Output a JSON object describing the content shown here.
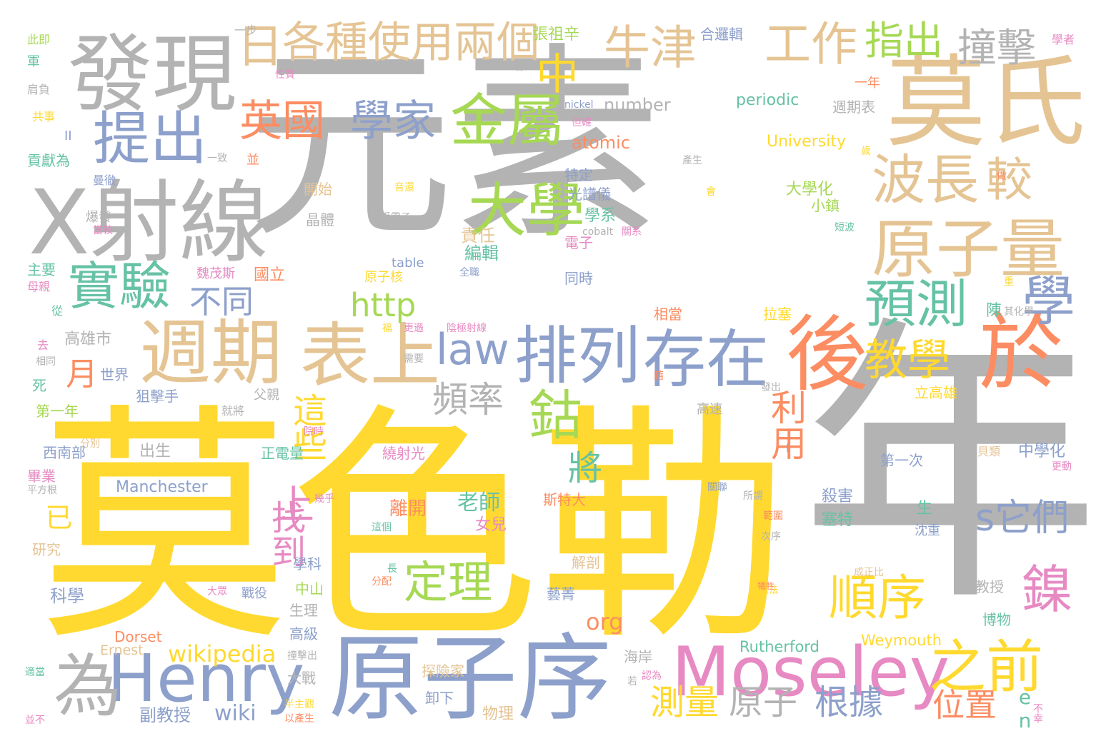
{
  "colors": {
    "gray": "#b3b3b3",
    "yellow": "#ffd92f",
    "tan": "#e5c494",
    "blue": "#8da0cb",
    "orange": "#fc8d62",
    "green": "#a6d854",
    "teal": "#66c2a5",
    "pink": "#e78ac3"
  },
  "words": [
    {
      "text": "元素",
      "color": "gray"
    },
    {
      "text": "莫色勒",
      "color": "yellow"
    },
    {
      "text": "年",
      "color": "gray"
    },
    {
      "text": "莫氏",
      "color": "tan"
    },
    {
      "text": "發現",
      "color": "gray"
    },
    {
      "text": "X射線",
      "color": "gray"
    },
    {
      "text": "原子序",
      "color": "blue"
    },
    {
      "text": "Moseley",
      "color": "pink"
    },
    {
      "text": "後",
      "color": "orange"
    },
    {
      "text": "於",
      "color": "orange"
    },
    {
      "text": "週期",
      "color": "tan"
    },
    {
      "text": "表上",
      "color": "tan"
    },
    {
      "text": "原子量",
      "color": "tan"
    },
    {
      "text": "排列",
      "color": "blue"
    },
    {
      "text": "存在",
      "color": "blue"
    },
    {
      "text": "Henry",
      "color": "blue"
    },
    {
      "text": "之前",
      "color": "yellow"
    },
    {
      "text": "為",
      "color": "gray"
    },
    {
      "text": "金屬",
      "color": "green"
    },
    {
      "text": "提出",
      "color": "blue"
    },
    {
      "text": "大學",
      "color": "green"
    },
    {
      "text": "實驗",
      "color": "teal"
    },
    {
      "text": "波長",
      "color": "tan"
    },
    {
      "text": "較",
      "color": "tan"
    },
    {
      "text": "預測",
      "color": "teal"
    },
    {
      "text": "學",
      "color": "blue"
    },
    {
      "text": "牛津",
      "color": "tan"
    },
    {
      "text": "工作",
      "color": "tan"
    },
    {
      "text": "撞擊",
      "color": "gray"
    },
    {
      "text": "指出",
      "color": "green"
    },
    {
      "text": "日",
      "color": "tan"
    },
    {
      "text": "各種",
      "color": "tan"
    },
    {
      "text": "使用",
      "color": "tan"
    },
    {
      "text": "兩個",
      "color": "tan"
    },
    {
      "text": "中",
      "color": "yellow"
    },
    {
      "text": "英國",
      "color": "orange"
    },
    {
      "text": "學家",
      "color": "blue"
    },
    {
      "text": "law",
      "color": "blue"
    },
    {
      "text": "教學",
      "color": "yellow"
    },
    {
      "text": "鈷",
      "color": "green"
    },
    {
      "text": "順序",
      "color": "yellow"
    },
    {
      "text": "鎳",
      "color": "pink"
    },
    {
      "text": "定理",
      "color": "green"
    },
    {
      "text": "s它們",
      "color": "blue"
    },
    {
      "text": "頻率",
      "color": "gray"
    },
    {
      "text": "http",
      "color": "green"
    },
    {
      "text": "不同",
      "color": "blue"
    },
    {
      "text": "月",
      "color": "orange"
    },
    {
      "text": "上",
      "color": "pink"
    },
    {
      "text": "將",
      "color": "teal"
    },
    {
      "text": "利用",
      "color": "orange"
    },
    {
      "text": "這些",
      "color": "yellow"
    },
    {
      "text": "找到",
      "color": "pink"
    },
    {
      "text": "測量",
      "color": "yellow"
    },
    {
      "text": "原子",
      "color": "gray"
    },
    {
      "text": "根據",
      "color": "blue"
    },
    {
      "text": "位置",
      "color": "orange"
    },
    {
      "text": "en",
      "color": "teal"
    },
    {
      "text": "wikipedia",
      "color": "yellow"
    },
    {
      "text": "wiki",
      "color": "blue"
    },
    {
      "text": "org",
      "color": "orange"
    },
    {
      "text": "已",
      "color": "yellow"
    },
    {
      "text": "老師",
      "color": "teal"
    },
    {
      "text": "離開",
      "color": "orange"
    },
    {
      "text": "女兒",
      "color": "pink"
    },
    {
      "text": "Manchester",
      "color": "blue"
    },
    {
      "text": "Rutherford",
      "color": "teal"
    },
    {
      "text": "Weymouth",
      "color": "yellow"
    },
    {
      "text": "Dorset",
      "color": "orange"
    },
    {
      "text": "Ernest",
      "color": "tan"
    },
    {
      "text": "number",
      "color": "gray"
    },
    {
      "text": "atomic",
      "color": "orange"
    },
    {
      "text": "periodic",
      "color": "teal"
    },
    {
      "text": "University",
      "color": "yellow"
    },
    {
      "text": "table",
      "color": "blue"
    },
    {
      "text": "nickel",
      "color": "blue"
    },
    {
      "text": "cobalt",
      "color": "gray"
    },
    {
      "text": "高雄市",
      "color": "gray"
    },
    {
      "text": "世界",
      "color": "blue"
    },
    {
      "text": "西南部",
      "color": "blue"
    },
    {
      "text": "狙擊手",
      "color": "blue"
    },
    {
      "text": "出生",
      "color": "gray"
    },
    {
      "text": "正電量",
      "color": "teal"
    },
    {
      "text": "繞射光",
      "color": "pink"
    },
    {
      "text": "中學化",
      "color": "blue"
    },
    {
      "text": "第一次",
      "color": "blue"
    },
    {
      "text": "學系",
      "color": "teal"
    },
    {
      "text": "大學化",
      "color": "green"
    },
    {
      "text": "週期表",
      "color": "gray"
    },
    {
      "text": "光譜儀",
      "color": "blue"
    },
    {
      "text": "責任",
      "color": "tan"
    },
    {
      "text": "編輯",
      "color": "teal"
    },
    {
      "text": "國立",
      "color": "orange"
    },
    {
      "text": "魏茂斯",
      "color": "pink"
    },
    {
      "text": "原子核",
      "color": "yellow"
    },
    {
      "text": "同時",
      "color": "blue"
    },
    {
      "text": "相當",
      "color": "orange"
    },
    {
      "text": "拉塞",
      "color": "yellow"
    },
    {
      "text": "張祖辛",
      "color": "green"
    },
    {
      "text": "合邏輯",
      "color": "blue"
    },
    {
      "text": "一步",
      "color": "gray"
    },
    {
      "text": "一年",
      "color": "orange"
    },
    {
      "text": "特定",
      "color": "blue"
    },
    {
      "text": "晶體",
      "color": "gray"
    },
    {
      "text": "開始",
      "color": "tan"
    },
    {
      "text": "小鎮",
      "color": "green"
    },
    {
      "text": "電子",
      "color": "pink"
    },
    {
      "text": "主要",
      "color": "teal"
    },
    {
      "text": "母親",
      "color": "pink"
    },
    {
      "text": "貢獻為",
      "color": "teal"
    },
    {
      "text": "死",
      "color": "teal"
    },
    {
      "text": "第一年",
      "color": "green"
    },
    {
      "text": "畢業",
      "color": "pink"
    },
    {
      "text": "研究",
      "color": "tan"
    },
    {
      "text": "科學",
      "color": "blue"
    },
    {
      "text": "學科",
      "color": "blue"
    },
    {
      "text": "中山",
      "color": "green"
    },
    {
      "text": "生理",
      "color": "gray"
    },
    {
      "text": "高級",
      "color": "blue"
    },
    {
      "text": "大戰",
      "color": "gray"
    },
    {
      "text": "戰役",
      "color": "blue"
    },
    {
      "text": "副教授",
      "color": "blue"
    },
    {
      "text": "卸下",
      "color": "blue"
    },
    {
      "text": "物理",
      "color": "tan"
    },
    {
      "text": "海岸",
      "color": "gray"
    },
    {
      "text": "探險家",
      "color": "tan"
    },
    {
      "text": "藝菁",
      "color": "blue"
    },
    {
      "text": "斯特大",
      "color": "orange"
    },
    {
      "text": "殺害",
      "color": "blue"
    },
    {
      "text": "塞特",
      "color": "teal"
    },
    {
      "text": "解剖",
      "color": "tan"
    },
    {
      "text": "教授",
      "color": "gray"
    },
    {
      "text": "博物",
      "color": "teal"
    },
    {
      "text": "立高雄",
      "color": "yellow"
    },
    {
      "text": "貝類",
      "color": "tan"
    },
    {
      "text": "生",
      "color": "teal"
    },
    {
      "text": "沈重",
      "color": "blue"
    },
    {
      "text": "陳",
      "color": "teal"
    },
    {
      "text": "高速",
      "color": "gray"
    },
    {
      "text": "父親",
      "color": "gray"
    },
    {
      "text": "就將",
      "color": "gray"
    },
    {
      "text": "分別",
      "color": "tan"
    },
    {
      "text": "平方根",
      "color": "gray"
    },
    {
      "text": "此即",
      "color": "green"
    },
    {
      "text": "軍",
      "color": "teal"
    },
    {
      "text": "肩負",
      "color": "gray"
    },
    {
      "text": "共事",
      "color": "yellow"
    },
    {
      "text": "並",
      "color": "orange"
    },
    {
      "text": "一致",
      "color": "gray"
    },
    {
      "text": "曼徹",
      "color": "blue"
    },
    {
      "text": "爆發",
      "color": "gray"
    },
    {
      "text": "當較",
      "color": "pink"
    },
    {
      "text": "從",
      "color": "teal"
    },
    {
      "text": "去",
      "color": "pink"
    },
    {
      "text": "相同",
      "color": "gray"
    },
    {
      "text": "學者",
      "color": "pink"
    },
    {
      "text": "做",
      "color": "orange"
    },
    {
      "text": "重",
      "color": "yellow"
    },
    {
      "text": "其化學",
      "color": "gray"
    },
    {
      "text": "更動",
      "color": "pink"
    },
    {
      "text": "次序",
      "color": "gray"
    },
    {
      "text": "成正比",
      "color": "tan"
    },
    {
      "text": "無法",
      "color": "yellow"
    },
    {
      "text": "並不",
      "color": "pink"
    },
    {
      "text": "適當",
      "color": "teal"
    },
    {
      "text": "以產生",
      "color": "orange"
    },
    {
      "text": "半主觀",
      "color": "yellow"
    },
    {
      "text": "撞擊出",
      "color": "gray"
    },
    {
      "text": "若",
      "color": "gray"
    },
    {
      "text": "認為",
      "color": "pink"
    },
    {
      "text": "譜",
      "color": "yellow"
    },
    {
      "text": "分配",
      "color": "orange"
    },
    {
      "text": "大眾",
      "color": "pink"
    },
    {
      "text": "長",
      "color": "teal"
    },
    {
      "text": "這個",
      "color": "teal"
    },
    {
      "text": "幾乎",
      "color": "pink"
    },
    {
      "text": "性質",
      "color": "pink"
    },
    {
      "text": "稱",
      "color": "gray"
    },
    {
      "text": "但確",
      "color": "pink"
    },
    {
      "text": "產生",
      "color": "gray"
    },
    {
      "text": "所謂",
      "color": "gray"
    },
    {
      "text": "範圍",
      "color": "orange"
    },
    {
      "text": "院時",
      "color": "pink"
    },
    {
      "text": "陰極射線",
      "color": "pink"
    },
    {
      "text": "更遜",
      "color": "pink"
    },
    {
      "text": "需要",
      "color": "gray"
    },
    {
      "text": "藉",
      "color": "orange"
    },
    {
      "text": "福",
      "color": "yellow"
    },
    {
      "text": "受電子",
      "color": "gray"
    },
    {
      "text": "音還",
      "color": "yellow"
    },
    {
      "text": "全職",
      "color": "blue"
    },
    {
      "text": "短波",
      "color": "teal"
    },
    {
      "text": "會",
      "color": "yellow"
    },
    {
      "text": "關聯",
      "color": "blue"
    },
    {
      "text": "犧牲",
      "color": "orange"
    },
    {
      "text": "發出",
      "color": "gray"
    },
    {
      "text": "歲",
      "color": "yellow"
    },
    {
      "text": "II",
      "color": "blue"
    },
    {
      "text": "I",
      "color": "blue"
    },
    {
      "text": "關系",
      "color": "pink"
    },
    {
      "text": "不幸",
      "color": "pink"
    }
  ]
}
